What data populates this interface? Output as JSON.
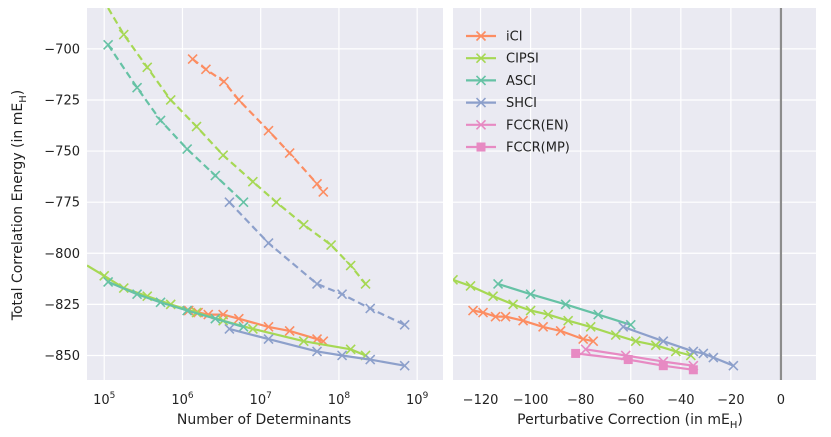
{
  "chart_data": {
    "type": "line",
    "ylabel": "Total Correlation Energy (in mE",
    "ylabel_sub": "H",
    "ylabel_close": ")",
    "ylim": [
      -862,
      -680
    ],
    "yticks": [
      -700,
      -725,
      -750,
      -775,
      -800,
      -825,
      -850
    ],
    "grid": true,
    "background": "#eaeaf2",
    "panels": [
      {
        "id": "left",
        "xlabel": "Number of Determinants",
        "xscale": "log",
        "xlim_log10": [
          4.78,
          9.33
        ],
        "xticks": [
          {
            "base": "10",
            "exp": "5",
            "pos": 5
          },
          {
            "base": "10",
            "exp": "6",
            "pos": 6
          },
          {
            "base": "10",
            "exp": "7",
            "pos": 7
          },
          {
            "base": "10",
            "exp": "8",
            "pos": 8
          },
          {
            "base": "10",
            "exp": "9",
            "pos": 9
          }
        ]
      },
      {
        "id": "right",
        "xlabel": "Perturbative Correction (in mE",
        "xlabel_sub": "H",
        "xlabel_close": ")",
        "xscale": "linear",
        "xlim": [
          -131,
          14
        ],
        "xticks": [
          {
            "label": "−120",
            "pos": -120
          },
          {
            "label": "−100",
            "pos": -100
          },
          {
            "label": "−80",
            "pos": -80
          },
          {
            "label": "−60",
            "pos": -60
          },
          {
            "label": "−40",
            "pos": -40
          },
          {
            "label": "−20",
            "pos": -20
          },
          {
            "label": "0",
            "pos": 0
          }
        ],
        "vline": 0
      }
    ],
    "legend": {
      "placement": "top-left of right panel",
      "entries": [
        {
          "name": "iCI",
          "color": "#fc8d62",
          "marker": "x"
        },
        {
          "name": "CIPSI",
          "color": "#a6d854",
          "marker": "x"
        },
        {
          "name": "ASCI",
          "color": "#66c2a5",
          "marker": "x"
        },
        {
          "name": "SHCI",
          "color": "#8da0cb",
          "marker": "x"
        },
        {
          "name": "FCCR(EN)",
          "color": "#e78ac3",
          "marker": "x"
        },
        {
          "name": "FCCR(MP)",
          "color": "#e78ac3",
          "marker": "s"
        }
      ]
    },
    "series": [
      {
        "name": "iCI",
        "color": "#fc8d62",
        "marker": "x",
        "var_dash": [
          [
            6.13,
            -705
          ],
          [
            6.3,
            -710
          ],
          [
            6.53,
            -716
          ],
          [
            6.72,
            -725
          ],
          [
            7.1,
            -740
          ],
          [
            7.37,
            -751
          ],
          [
            7.72,
            -766
          ],
          [
            7.8,
            -770
          ]
        ],
        "var_marks": [
          [
            6.13,
            -705
          ],
          [
            6.3,
            -710
          ],
          [
            6.53,
            -716
          ],
          [
            6.72,
            -725
          ],
          [
            7.1,
            -740
          ],
          [
            7.37,
            -751
          ],
          [
            7.72,
            -766
          ],
          [
            7.8,
            -770
          ]
        ],
        "ext_solid": [
          [
            6.08,
            -828
          ],
          [
            6.2,
            -829
          ],
          [
            6.33,
            -830
          ],
          [
            6.52,
            -830
          ],
          [
            6.72,
            -832
          ],
          [
            7.1,
            -836
          ],
          [
            7.37,
            -838
          ],
          [
            7.72,
            -842
          ],
          [
            7.8,
            -843
          ]
        ],
        "pt_solid": [
          [
            -123,
            -828
          ],
          [
            -119,
            -829
          ],
          [
            -114,
            -831
          ],
          [
            -110,
            -831
          ],
          [
            -103,
            -833
          ],
          [
            -95,
            -836
          ],
          [
            -88,
            -838
          ],
          [
            -79,
            -842
          ],
          [
            -75,
            -843
          ]
        ]
      },
      {
        "name": "CIPSI",
        "color": "#a6d854",
        "marker": "x",
        "var_dash": [
          [
            5.05,
            -680
          ],
          [
            5.25,
            -693
          ],
          [
            5.55,
            -709
          ],
          [
            5.85,
            -725
          ],
          [
            6.18,
            -738
          ],
          [
            6.52,
            -752
          ],
          [
            6.9,
            -765
          ],
          [
            7.2,
            -775
          ],
          [
            7.55,
            -786
          ],
          [
            7.9,
            -796
          ],
          [
            8.15,
            -806
          ],
          [
            8.34,
            -815
          ]
        ],
        "var_marks": [
          [
            5.25,
            -693
          ],
          [
            5.55,
            -709
          ],
          [
            5.85,
            -725
          ],
          [
            6.18,
            -738
          ],
          [
            6.52,
            -752
          ],
          [
            6.9,
            -765
          ],
          [
            7.2,
            -775
          ],
          [
            7.55,
            -786
          ],
          [
            7.9,
            -796
          ],
          [
            8.15,
            -806
          ],
          [
            8.34,
            -815
          ]
        ],
        "ext_solid": [
          [
            4.78,
            -806
          ],
          [
            5.0,
            -811
          ],
          [
            5.25,
            -817
          ],
          [
            5.55,
            -821
          ],
          [
            5.85,
            -825
          ],
          [
            6.18,
            -829
          ],
          [
            6.52,
            -833
          ],
          [
            6.9,
            -837
          ],
          [
            7.55,
            -843
          ],
          [
            8.15,
            -847
          ],
          [
            8.34,
            -850
          ]
        ],
        "ext_marks": [
          [
            5.0,
            -811
          ],
          [
            5.25,
            -817
          ],
          [
            5.55,
            -821
          ],
          [
            5.85,
            -825
          ],
          [
            6.18,
            -829
          ],
          [
            6.52,
            -833
          ],
          [
            6.9,
            -837
          ],
          [
            7.55,
            -843
          ],
          [
            8.15,
            -847
          ],
          [
            8.34,
            -850
          ]
        ],
        "pt_solid": [
          [
            -131,
            -813
          ],
          [
            -124,
            -816
          ],
          [
            -115,
            -821
          ],
          [
            -107,
            -825
          ],
          [
            -100,
            -828
          ],
          [
            -93,
            -830
          ],
          [
            -85,
            -833
          ],
          [
            -76,
            -836
          ],
          [
            -66,
            -840
          ],
          [
            -58,
            -843
          ],
          [
            -50,
            -845
          ],
          [
            -42,
            -848
          ],
          [
            -36,
            -850
          ]
        ]
      },
      {
        "name": "ASCI",
        "color": "#66c2a5",
        "marker": "x",
        "var_dash": [
          [
            5.05,
            -698
          ],
          [
            5.42,
            -719
          ],
          [
            5.72,
            -735
          ],
          [
            6.06,
            -749
          ],
          [
            6.42,
            -762
          ],
          [
            6.78,
            -775
          ]
        ],
        "var_marks": [
          [
            5.05,
            -698
          ],
          [
            5.42,
            -719
          ],
          [
            5.72,
            -735
          ],
          [
            6.06,
            -749
          ],
          [
            6.42,
            -762
          ],
          [
            6.78,
            -775
          ]
        ],
        "ext_solid": [
          [
            5.05,
            -814
          ],
          [
            5.42,
            -820
          ],
          [
            5.72,
            -824
          ],
          [
            6.06,
            -828
          ],
          [
            6.42,
            -832
          ],
          [
            6.78,
            -836
          ]
        ],
        "pt_solid": [
          [
            -113,
            -815
          ],
          [
            -100,
            -820
          ],
          [
            -86,
            -825
          ],
          [
            -73,
            -830
          ],
          [
            -60,
            -835
          ]
        ]
      },
      {
        "name": "SHCI",
        "color": "#8da0cb",
        "marker": "x",
        "var_dash": [
          [
            6.6,
            -775
          ],
          [
            7.1,
            -795
          ],
          [
            7.72,
            -815
          ],
          [
            8.04,
            -820
          ],
          [
            8.4,
            -827
          ],
          [
            8.84,
            -835
          ]
        ],
        "var_marks": [
          [
            6.6,
            -775
          ],
          [
            7.1,
            -795
          ],
          [
            7.72,
            -815
          ],
          [
            8.04,
            -820
          ],
          [
            8.4,
            -827
          ],
          [
            8.84,
            -835
          ]
        ],
        "ext_solid": [
          [
            6.6,
            -837
          ],
          [
            7.1,
            -842
          ],
          [
            7.72,
            -848
          ],
          [
            8.04,
            -850
          ],
          [
            8.4,
            -852
          ],
          [
            8.84,
            -855
          ]
        ],
        "pt_solid": [
          [
            -63,
            -836
          ],
          [
            -47,
            -843
          ],
          [
            -35,
            -848
          ],
          [
            -31,
            -849
          ],
          [
            -27,
            -851
          ],
          [
            -19,
            -855
          ]
        ]
      },
      {
        "name": "FCCR(EN)",
        "color": "#e78ac3",
        "marker": "x",
        "pt_solid": [
          [
            -78,
            -847
          ],
          [
            -62,
            -850
          ],
          [
            -47,
            -853
          ],
          [
            -35,
            -855
          ]
        ]
      },
      {
        "name": "FCCR(MP)",
        "color": "#e78ac3",
        "marker": "s",
        "pt_solid": [
          [
            -82,
            -849
          ],
          [
            -61,
            -852
          ],
          [
            -47,
            -855
          ],
          [
            -35,
            -857
          ]
        ]
      }
    ]
  }
}
